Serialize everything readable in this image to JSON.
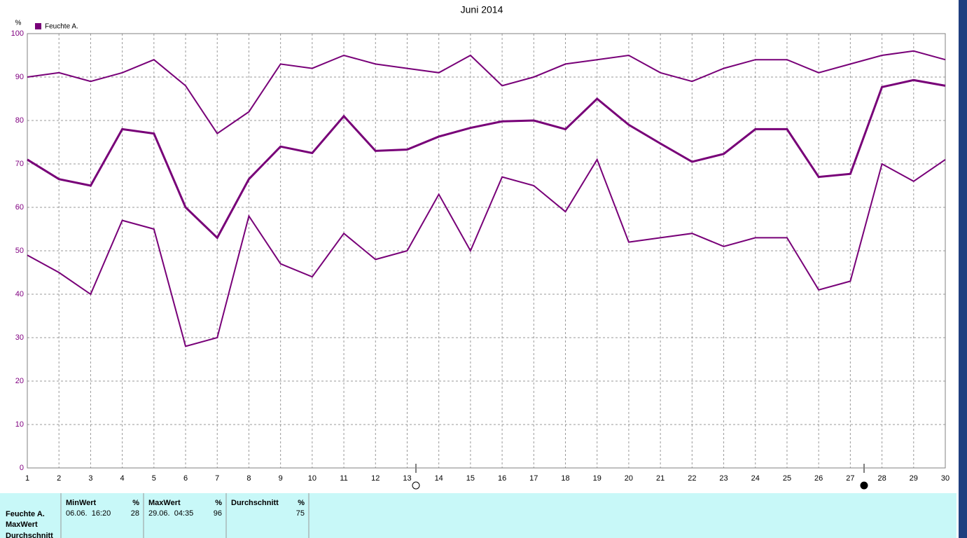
{
  "chart_data": {
    "type": "line",
    "title": "Juni 2014",
    "ylabel": "%",
    "legend": {
      "label": "Feuchte A.",
      "color": "#780078"
    },
    "x": [
      1,
      2,
      3,
      4,
      5,
      6,
      7,
      8,
      9,
      10,
      11,
      12,
      13,
      14,
      15,
      16,
      17,
      18,
      19,
      20,
      21,
      22,
      23,
      24,
      25,
      26,
      27,
      28,
      29,
      30
    ],
    "series": [
      {
        "color": "#780078",
        "values": [
          90,
          91,
          89,
          91,
          94,
          88,
          77,
          82,
          93,
          92,
          95,
          93,
          92,
          91,
          95,
          88,
          90,
          93,
          94,
          95,
          91,
          89,
          92,
          94,
          94,
          91,
          93,
          95,
          96,
          94
        ]
      },
      {
        "color": "#780078",
        "values": [
          71,
          66.5,
          65,
          78,
          77,
          60,
          53,
          66.5,
          74,
          72.5,
          81,
          73,
          73.3,
          76.3,
          78.3,
          79.8,
          80,
          78,
          85,
          79,
          74.7,
          70.5,
          72.3,
          78,
          78,
          67,
          67.7,
          87.7,
          89.3,
          88
        ]
      },
      {
        "color": "#780078",
        "values": [
          49,
          45,
          40,
          57,
          55,
          28,
          30,
          58,
          47,
          44,
          54,
          48,
          50,
          63,
          50,
          67,
          65,
          59,
          71,
          52,
          53,
          54,
          51,
          53,
          53,
          41,
          43,
          70,
          66,
          71
        ]
      }
    ],
    "xlim": [
      1,
      30
    ],
    "xticks": [
      1,
      2,
      3,
      4,
      5,
      6,
      7,
      8,
      9,
      10,
      11,
      12,
      13,
      14,
      15,
      16,
      17,
      18,
      19,
      20,
      21,
      22,
      23,
      24,
      25,
      26,
      27,
      28,
      29,
      30
    ],
    "ylim": [
      0,
      100
    ],
    "yticks": [
      0,
      10,
      20,
      30,
      40,
      50,
      60,
      70,
      80,
      90,
      100
    ],
    "grid": true
  },
  "stats_table": {
    "row_labels": [
      "Feuchte A.",
      "MaxWert",
      "Durchschnitt"
    ],
    "columns": [
      {
        "header": "MinWert",
        "unit": "%",
        "date": "06.06.  16:20",
        "value": 28
      },
      {
        "header": "MaxWert",
        "unit": "%",
        "date": "29.06.  04:35",
        "value": 96
      },
      {
        "header": "Durchschnitt",
        "unit": "%",
        "value": 75
      }
    ]
  }
}
